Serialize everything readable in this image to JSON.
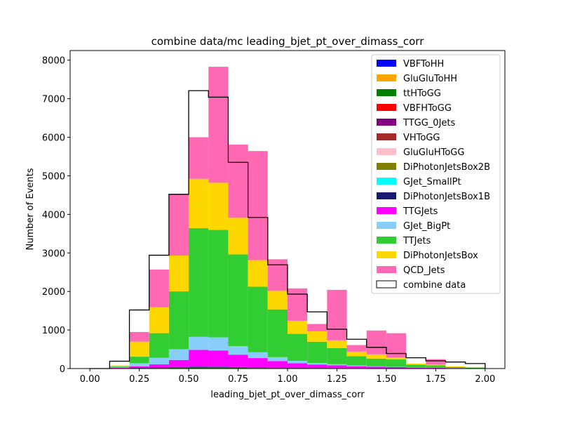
{
  "chart_data": {
    "type": "bar",
    "title": "combine data/mc leading_bjet_pt_over_dimass_corr",
    "xlabel": "leading_bjet_pt_over_dimass_corr",
    "ylabel": "Number of Events",
    "xlim": [
      -0.1,
      2.1
    ],
    "ylim": [
      0,
      8250
    ],
    "xticks": [
      "0.00",
      "0.25",
      "0.50",
      "0.75",
      "1.00",
      "1.25",
      "1.50",
      "1.75",
      "2.00"
    ],
    "xtick_values": [
      0,
      0.25,
      0.5,
      0.75,
      1.0,
      1.25,
      1.5,
      1.75,
      2.0
    ],
    "yticks": [
      "0",
      "1000",
      "2000",
      "3000",
      "4000",
      "5000",
      "6000",
      "7000",
      "8000"
    ],
    "ytick_values": [
      0,
      1000,
      2000,
      3000,
      4000,
      5000,
      6000,
      7000,
      8000
    ],
    "grid": false,
    "legend_position": "upper-right",
    "bin_edges": [
      0.0,
      0.1,
      0.2,
      0.3,
      0.4,
      0.5,
      0.6,
      0.7,
      0.8,
      0.9,
      1.0,
      1.1,
      1.2,
      1.3,
      1.4,
      1.5,
      1.6,
      1.7,
      1.8,
      1.9,
      2.0
    ],
    "stacked_mc": [
      {
        "name": "VBFToHH",
        "color": "#0000ff",
        "values": [
          0,
          0,
          0,
          0,
          0,
          0,
          0,
          0,
          0,
          0,
          0,
          0,
          0,
          0,
          0,
          0,
          0,
          0,
          0,
          0
        ]
      },
      {
        "name": "GluGluToHH",
        "color": "#ffa500",
        "values": [
          0,
          0,
          0,
          0,
          0,
          0,
          0,
          0,
          0,
          0,
          0,
          0,
          0,
          0,
          0,
          0,
          0,
          0,
          0,
          0
        ]
      },
      {
        "name": "ttHToGG",
        "color": "#008000",
        "values": [
          0,
          5,
          8,
          12,
          20,
          25,
          24,
          20,
          16,
          12,
          10,
          8,
          6,
          5,
          4,
          3,
          2,
          2,
          1,
          1
        ]
      },
      {
        "name": "VBFHToGG",
        "color": "#ff0000",
        "values": [
          0,
          0,
          0,
          0,
          0,
          0,
          0,
          0,
          0,
          0,
          0,
          0,
          0,
          0,
          0,
          0,
          0,
          0,
          0,
          0
        ]
      },
      {
        "name": "TTGG_0Jets",
        "color": "#800080",
        "values": [
          0,
          2,
          5,
          8,
          12,
          15,
          15,
          12,
          10,
          8,
          6,
          5,
          4,
          3,
          2,
          2,
          1,
          1,
          1,
          0
        ]
      },
      {
        "name": "VHToGG",
        "color": "#a52a2a",
        "values": [
          0,
          0,
          0,
          0,
          0,
          0,
          0,
          0,
          0,
          0,
          0,
          0,
          0,
          0,
          0,
          0,
          0,
          0,
          0,
          0
        ]
      },
      {
        "name": "GluGluHToGG",
        "color": "#ffc0cb",
        "values": [
          0,
          0,
          0,
          0,
          0,
          0,
          0,
          0,
          0,
          0,
          0,
          0,
          0,
          0,
          0,
          0,
          0,
          0,
          0,
          0
        ]
      },
      {
        "name": "DiPhotonJetsBox2B",
        "color": "#808000",
        "values": [
          0,
          0,
          0,
          0,
          0,
          0,
          0,
          0,
          0,
          0,
          0,
          0,
          0,
          0,
          0,
          0,
          0,
          0,
          0,
          0
        ]
      },
      {
        "name": "GJet_SmallPt",
        "color": "#00ffff",
        "values": [
          0,
          0,
          0,
          0,
          0,
          0,
          0,
          0,
          0,
          0,
          0,
          0,
          0,
          0,
          0,
          0,
          0,
          0,
          0,
          0
        ]
      },
      {
        "name": "DiPhotonJetsBox1B",
        "color": "#191970",
        "values": [
          0,
          3,
          5,
          8,
          10,
          12,
          10,
          8,
          6,
          5,
          4,
          3,
          2,
          2,
          1,
          1,
          1,
          0,
          0,
          0
        ]
      },
      {
        "name": "TTGJets",
        "color": "#ff00ff",
        "values": [
          0,
          15,
          40,
          80,
          180,
          430,
          420,
          320,
          240,
          170,
          120,
          90,
          70,
          50,
          40,
          30,
          20,
          15,
          10,
          5
        ]
      },
      {
        "name": "GJet_BigPt",
        "color": "#87cefa",
        "values": [
          0,
          15,
          80,
          170,
          280,
          340,
          340,
          220,
          150,
          100,
          60,
          40,
          30,
          20,
          10,
          10,
          5,
          5,
          5,
          3
        ]
      },
      {
        "name": "TTJets",
        "color": "#32cd32",
        "values": [
          0,
          20,
          170,
          640,
          1500,
          2820,
          2790,
          2380,
          1700,
          1240,
          700,
          550,
          420,
          240,
          200,
          190,
          70,
          60,
          20,
          10
        ]
      },
      {
        "name": "DiPhotonJetsBox",
        "color": "#ffd700",
        "values": [
          0,
          20,
          390,
          670,
          930,
          1280,
          1220,
          950,
          690,
          480,
          340,
          270,
          200,
          120,
          110,
          50,
          30,
          20,
          20,
          20
        ]
      },
      {
        "name": "QCD_Jets",
        "color": "#ff69b4",
        "values": [
          0,
          0,
          250,
          980,
          1600,
          1080,
          3010,
          1900,
          2830,
          820,
          840,
          190,
          1310,
          170,
          620,
          630,
          0,
          140,
          0,
          0
        ]
      }
    ],
    "data_series": {
      "name": "combine data",
      "values": [
        0,
        190,
        1520,
        2940,
        4520,
        7210,
        7040,
        5350,
        3920,
        2690,
        1930,
        1470,
        1020,
        760,
        550,
        390,
        280,
        200,
        170,
        130
      ]
    }
  }
}
